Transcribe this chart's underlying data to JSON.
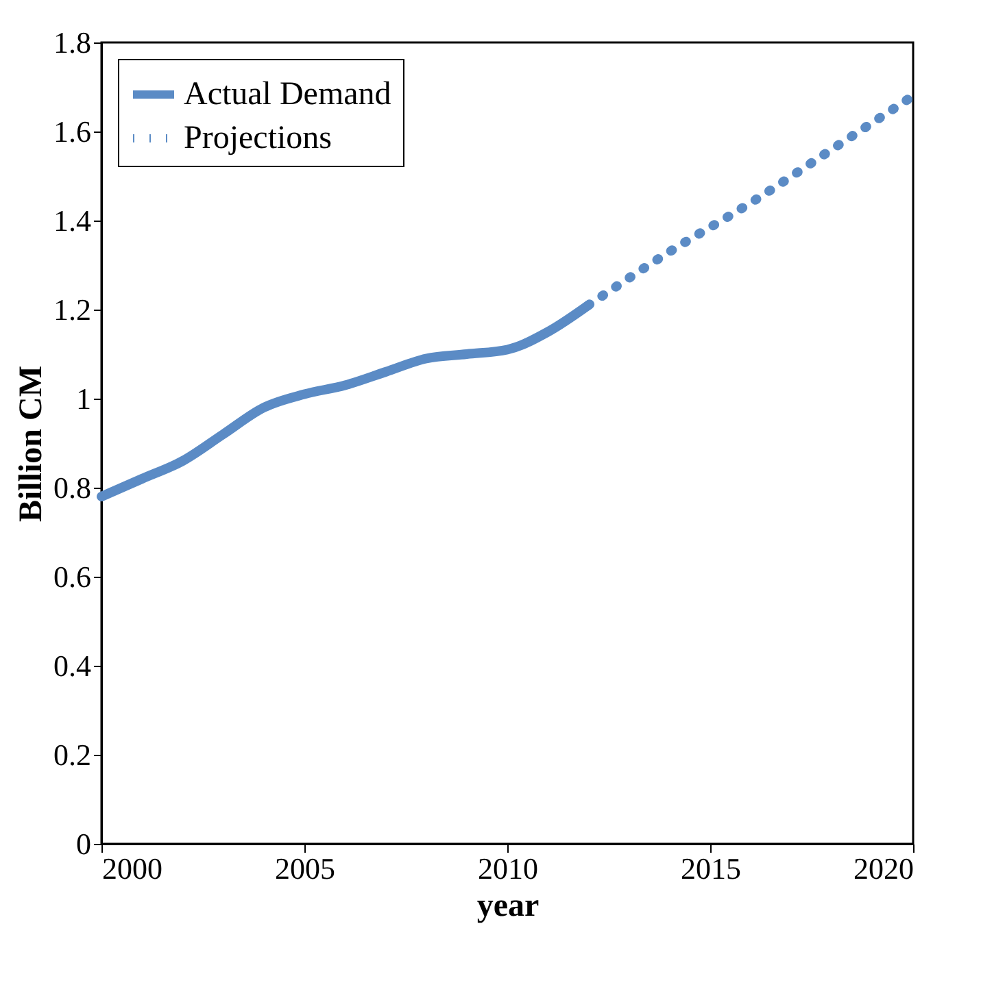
{
  "chart_data": {
    "type": "line",
    "xlabel": "year",
    "ylabel": "Billion CM",
    "xlim": [
      2000,
      2020
    ],
    "xticks": [
      2000,
      2005,
      2010,
      2015,
      2020
    ],
    "ylim": [
      0,
      1.8
    ],
    "yticks": [
      0,
      0.2,
      0.4,
      0.6,
      0.8,
      1,
      1.2,
      1.4,
      1.6,
      1.8
    ],
    "legend": "top left",
    "series": [
      {
        "name": "Actual Demand",
        "color": "#5b8bc5",
        "line_style": "solid",
        "x": [
          2000,
          2001,
          2002,
          2003,
          2004,
          2005,
          2006,
          2007,
          2008,
          2009,
          2010,
          2011,
          2012
        ],
        "values": [
          0.78,
          0.82,
          0.86,
          0.92,
          0.98,
          1.01,
          1.03,
          1.06,
          1.09,
          1.1,
          1.11,
          1.15,
          1.21
        ]
      },
      {
        "name": "Projections",
        "color": "#5b8bc5",
        "line_style": "dotted",
        "x": [
          2012,
          2014,
          2016,
          2018,
          2020
        ],
        "values": [
          1.21,
          1.33,
          1.44,
          1.56,
          1.68
        ]
      }
    ]
  }
}
